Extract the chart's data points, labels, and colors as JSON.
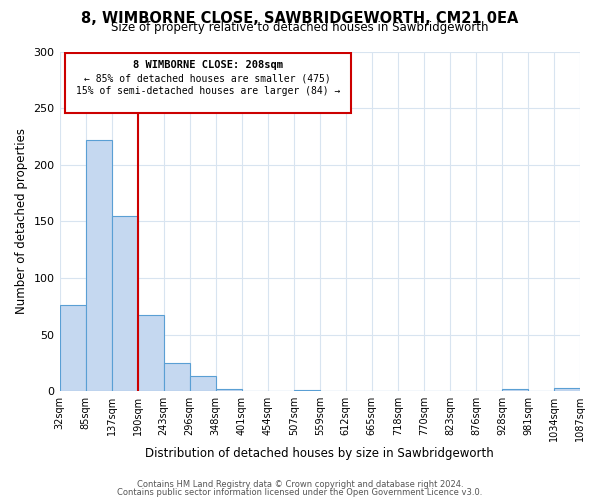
{
  "title": "8, WIMBORNE CLOSE, SAWBRIDGEWORTH, CM21 0EA",
  "subtitle": "Size of property relative to detached houses in Sawbridgeworth",
  "bar_values": [
    76,
    222,
    155,
    67,
    25,
    13,
    2,
    0,
    0,
    1,
    0,
    0,
    0,
    0,
    0,
    0,
    0,
    2,
    0,
    3
  ],
  "bin_labels": [
    "32sqm",
    "85sqm",
    "137sqm",
    "190sqm",
    "243sqm",
    "296sqm",
    "348sqm",
    "401sqm",
    "454sqm",
    "507sqm",
    "559sqm",
    "612sqm",
    "665sqm",
    "718sqm",
    "770sqm",
    "823sqm",
    "876sqm",
    "928sqm",
    "981sqm",
    "1034sqm",
    "1087sqm"
  ],
  "bar_color": "#c5d8f0",
  "bar_edge_color": "#5a9fd4",
  "ylabel": "Number of detached properties",
  "xlabel": "Distribution of detached houses by size in Sawbridgeworth",
  "ylim": [
    0,
    300
  ],
  "yticks": [
    0,
    50,
    100,
    150,
    200,
    250,
    300
  ],
  "vline_x": 3.0,
  "vline_color": "#cc0000",
  "box_text_line1": "8 WIMBORNE CLOSE: 208sqm",
  "box_text_line2": "← 85% of detached houses are smaller (475)",
  "box_text_line3": "15% of semi-detached houses are larger (84) →",
  "box_color": "#cc0000",
  "footer_line1": "Contains HM Land Registry data © Crown copyright and database right 2024.",
  "footer_line2": "Contains public sector information licensed under the Open Government Licence v3.0.",
  "num_bins": 20,
  "grid_color": "#d8e4f0"
}
